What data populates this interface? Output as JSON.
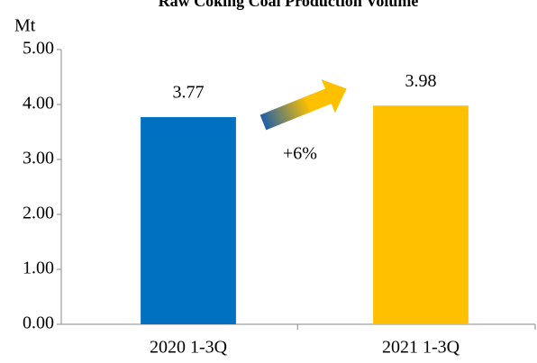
{
  "chart_data": {
    "type": "bar",
    "title": "Raw Coking Coal Production Volume",
    "y_label": "Mt",
    "categories": [
      "2020 1-3Q",
      "2021 1-3Q"
    ],
    "values": [
      3.77,
      3.98
    ],
    "colors": [
      "#0070c0",
      "#ffc000"
    ],
    "ylim": [
      0,
      5
    ],
    "yticks": [
      {
        "value": 0,
        "label": "0.00"
      },
      {
        "value": 1,
        "label": "1.00"
      },
      {
        "value": 2,
        "label": "2.00"
      },
      {
        "value": 3,
        "label": "3.00"
      },
      {
        "value": 4,
        "label": "4.00"
      },
      {
        "value": 5,
        "label": "5.00"
      }
    ],
    "grid": false,
    "annotation": "+6%"
  }
}
